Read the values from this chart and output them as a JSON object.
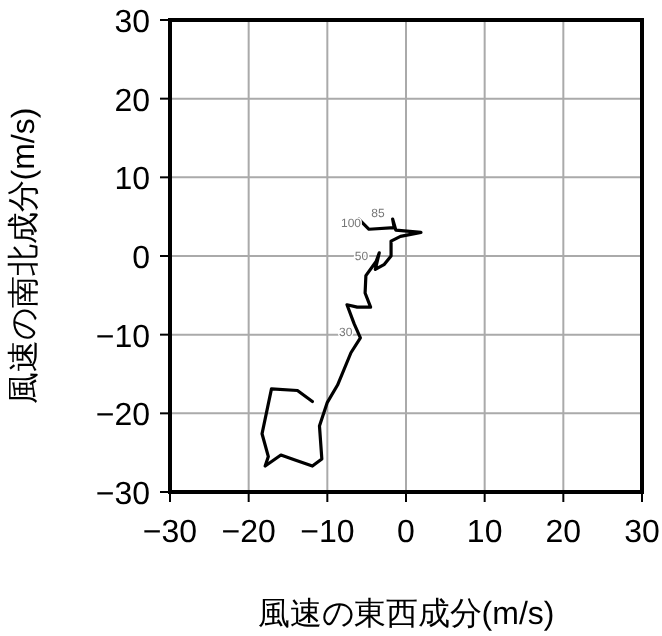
{
  "chart_data": {
    "type": "line",
    "xlabel": "風速の東西成分(m/s)",
    "ylabel": "風速の南北成分(m/s)",
    "xlim": [
      -30,
      30
    ],
    "ylim": [
      -30,
      30
    ],
    "xticks": [
      -30,
      -20,
      -10,
      0,
      10,
      20,
      30
    ],
    "yticks": [
      -30,
      -20,
      -10,
      0,
      10,
      20,
      30
    ],
    "grid": true,
    "marker": "none",
    "line_style": "solid",
    "series": [
      {
        "color": "#000000",
        "x": [
          -11.9,
          -13.8,
          -17.1,
          -18.3,
          -17.5,
          -17.9,
          -15.9,
          -14.2,
          -11.9,
          -10.7,
          -11.0,
          -10.0,
          -8.7,
          -7.0,
          -5.8,
          -6.6,
          -7.5,
          -6.2,
          -4.5,
          -5.2,
          -5.1,
          -3.8,
          -3.4,
          -3.9,
          -2.8,
          -1.9,
          -1.9,
          -0.7,
          1.9,
          -1.3,
          -1.7,
          -1.5,
          -4.7,
          -6.0
        ],
        "values": [
          -18.5,
          -17.1,
          -16.9,
          -22.6,
          -25.5,
          -26.7,
          -25.3,
          -25.9,
          -26.7,
          -25.8,
          -21.6,
          -18.6,
          -16.4,
          -12.3,
          -10.4,
          -8.6,
          -6.2,
          -6.5,
          -6.5,
          -4.7,
          -2.5,
          -0.7,
          0.4,
          -1.7,
          -1.1,
          0.0,
          1.9,
          2.5,
          3.0,
          3.3,
          4.7,
          3.6,
          3.4,
          4.7
        ]
      }
    ],
    "annotations": [
      {
        "text": "85",
        "x": -1.7,
        "y": 4.7
      },
      {
        "text": "100",
        "x": -4.7,
        "y": 3.4
      },
      {
        "text": "50",
        "x": -3.8,
        "y": -0.7
      },
      {
        "text": "30",
        "x": -5.8,
        "y": -10.4
      }
    ]
  }
}
